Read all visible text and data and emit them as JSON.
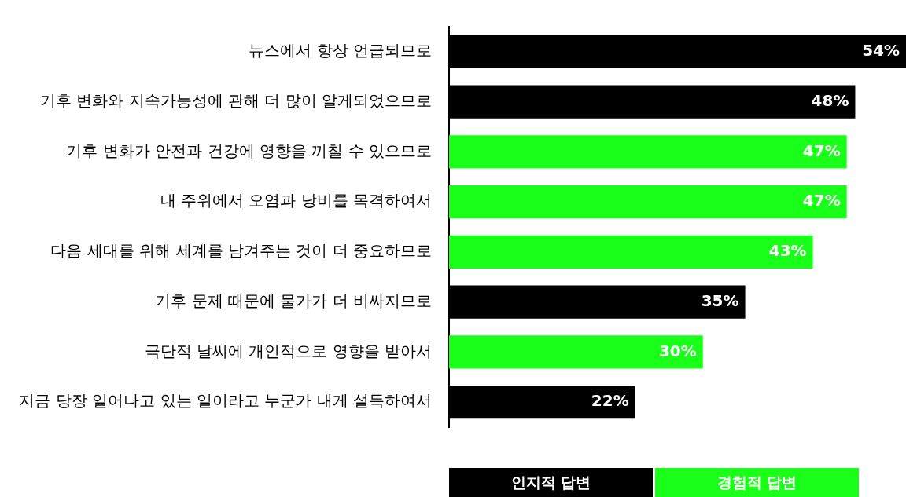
{
  "chart_data": {
    "type": "bar",
    "orientation": "horizontal",
    "stacked": true,
    "legend": "bottom",
    "categories": [
      "뉴스에서 항상 언급되므로",
      "기후 변화와 지속가능성에 관해 더 많이 알게되었으므로",
      "기후 변화가 안전과 건강에 영향을 끼칠 수 있으므로",
      "내 주위에서 오염과 낭비를 목격하여서",
      "다음 세대를 위해 세계를 남겨주는 것이 더 중요하므로",
      "기후 문제 때문에 물가가 더 비싸지므로",
      "극단적 날씨에 개인적으로 영향을 받아서",
      "지금 당장 일어나고 있는 일이라고 누군가 내게 설득하여서"
    ],
    "series": [
      {
        "name": "인지적 답변",
        "color": "#000000",
        "values": [
          54,
          48,
          null,
          null,
          null,
          35,
          null,
          22
        ],
        "value_labels": [
          "54%",
          "48%",
          null,
          null,
          null,
          "35%",
          null,
          "22%"
        ]
      },
      {
        "name": "경험적 답변",
        "color": "#1aff1a",
        "values": [
          null,
          null,
          47,
          47,
          43,
          null,
          30,
          null
        ],
        "value_labels": [
          null,
          null,
          "47%",
          "47%",
          "43%",
          null,
          "30%",
          null
        ]
      }
    ]
  }
}
